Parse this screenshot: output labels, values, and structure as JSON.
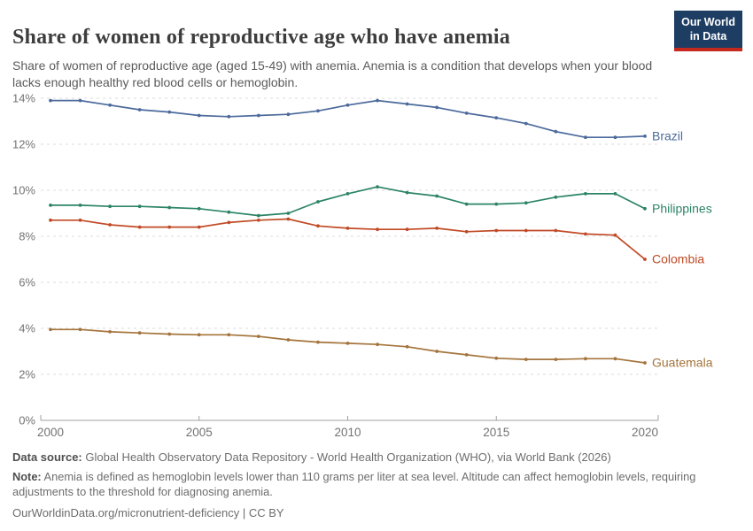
{
  "header": {
    "title": "Share of women of reproductive age who have anemia",
    "subtitle": "Share of women of reproductive age (aged 15-49) with anemia. Anemia is a condition that develops when your blood lacks enough healthy red blood cells or hemoglobin.",
    "logo": {
      "line1": "Our World",
      "line2": "in Data"
    }
  },
  "chart_data": {
    "type": "line",
    "title": "Share of women of reproductive age who have anemia",
    "x": [
      2000,
      2001,
      2002,
      2003,
      2004,
      2005,
      2006,
      2007,
      2008,
      2009,
      2010,
      2011,
      2012,
      2013,
      2014,
      2015,
      2016,
      2017,
      2018,
      2019,
      2020
    ],
    "series": [
      {
        "name": "Brazil",
        "color": "#4C6A9C",
        "values": [
          13.9,
          13.9,
          13.7,
          13.5,
          13.4,
          13.25,
          13.2,
          13.25,
          13.3,
          13.45,
          13.7,
          13.9,
          13.75,
          13.6,
          13.35,
          13.15,
          12.9,
          12.55,
          12.3,
          12.3,
          12.35
        ]
      },
      {
        "name": "Philippines",
        "color": "#2C8465",
        "values": [
          9.35,
          9.35,
          9.3,
          9.3,
          9.25,
          9.2,
          9.05,
          8.9,
          9.0,
          9.5,
          9.85,
          10.15,
          9.9,
          9.75,
          9.4,
          9.4,
          9.45,
          9.7,
          9.85,
          9.85,
          9.2
        ]
      },
      {
        "name": "Colombia",
        "color": "#C14A26",
        "values": [
          8.7,
          8.7,
          8.5,
          8.4,
          8.4,
          8.4,
          8.6,
          8.7,
          8.75,
          8.45,
          8.35,
          8.3,
          8.3,
          8.35,
          8.2,
          8.25,
          8.25,
          8.25,
          8.1,
          8.05,
          7.0
        ]
      },
      {
        "name": "Guatemala",
        "color": "#A4743C",
        "values": [
          3.95,
          3.95,
          3.85,
          3.8,
          3.75,
          3.72,
          3.72,
          3.65,
          3.5,
          3.4,
          3.35,
          3.3,
          3.2,
          3.0,
          2.85,
          2.7,
          2.65,
          2.65,
          2.68,
          2.68,
          2.5
        ]
      }
    ],
    "ylim": [
      0,
      14
    ],
    "yticks": [
      0,
      2,
      4,
      6,
      8,
      10,
      12,
      14
    ],
    "ytick_suffix": "%",
    "xticks": [
      2000,
      2005,
      2010,
      2015,
      2020
    ],
    "grid": true,
    "legend_position": "end-of-line"
  },
  "footer": {
    "data_source_label": "Data source:",
    "data_source_text": " Global Health Observatory Data Repository - World Health Organization (WHO), via World Bank (2026)",
    "note_label": "Note:",
    "note_text": " Anemia is defined as hemoglobin levels lower than 110 grams per liter at sea level. Altitude can affect hemoglobin levels, requiring adjustments to the threshold for diagnosing anemia.",
    "attribution": "OurWorldinData.org/micronutrient-deficiency | CC BY"
  },
  "colors": {
    "title": "#3d3d3d",
    "subtitle": "#5b5b5b",
    "grid": "#DBDBDB",
    "axis": "#A0A0A0",
    "tick_label": "#737373",
    "logo_bg": "#1D3D63",
    "logo_bar": "#C5281C"
  }
}
